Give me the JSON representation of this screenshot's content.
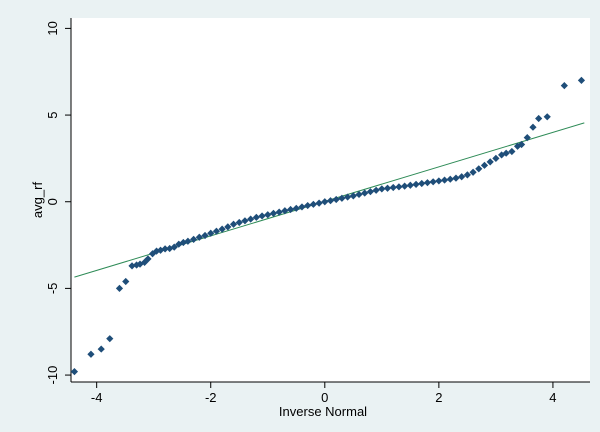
{
  "chart_data": {
    "type": "scatter",
    "title": "",
    "xlabel": "Inverse Normal",
    "ylabel": "avg_rf",
    "xlim": [
      -4.45,
      4.65
    ],
    "ylim": [
      -10.4,
      10.6
    ],
    "xticks": [
      -4,
      -2,
      0,
      2,
      4
    ],
    "xtick_labels": [
      "-4",
      "-2",
      "0",
      "2",
      "4"
    ],
    "yticks": [
      -10,
      -5,
      0,
      5,
      10
    ],
    "ytick_labels": [
      "-10",
      "-5",
      "0",
      "5",
      "10"
    ],
    "grid": false,
    "legend": "none",
    "colors": {
      "background": "#eaf2f3",
      "plot_area": "#ffffff",
      "markers": "#1f4e79",
      "reference_line": "#2e8b57",
      "axis": "#000000"
    },
    "series": [
      {
        "kind": "points",
        "x": [
          -4.39,
          -4.1,
          -3.92,
          -3.77,
          -3.6,
          -3.49,
          -3.38,
          -3.3,
          -3.24,
          -3.16,
          -3.1,
          -3.02,
          -2.95,
          -2.88,
          -2.8,
          -2.72,
          -2.64,
          -2.56,
          -2.48,
          -2.4,
          -2.3,
          -2.2,
          -2.1,
          -2.0,
          -1.9,
          -1.8,
          -1.7,
          -1.6,
          -1.5,
          -1.4,
          -1.3,
          -1.2,
          -1.1,
          -1.0,
          -0.9,
          -0.8,
          -0.7,
          -0.6,
          -0.5,
          -0.4,
          -0.3,
          -0.2,
          -0.1,
          0.0,
          0.1,
          0.2,
          0.3,
          0.4,
          0.5,
          0.6,
          0.7,
          0.8,
          0.9,
          1.0,
          1.1,
          1.2,
          1.3,
          1.4,
          1.5,
          1.6,
          1.7,
          1.8,
          1.9,
          2.0,
          2.1,
          2.2,
          2.3,
          2.4,
          2.5,
          2.6,
          2.7,
          2.8,
          2.9,
          3.0,
          3.1,
          3.18,
          3.28,
          3.38,
          3.45,
          3.55,
          3.65,
          3.75,
          3.9,
          4.2,
          4.5
        ],
        "y": [
          -9.8,
          -8.8,
          -8.5,
          -7.9,
          -5.0,
          -4.6,
          -3.7,
          -3.65,
          -3.6,
          -3.5,
          -3.3,
          -3.0,
          -2.85,
          -2.8,
          -2.72,
          -2.7,
          -2.62,
          -2.45,
          -2.35,
          -2.28,
          -2.17,
          -2.05,
          -1.95,
          -1.82,
          -1.7,
          -1.58,
          -1.45,
          -1.3,
          -1.2,
          -1.1,
          -1.0,
          -0.9,
          -0.82,
          -0.75,
          -0.67,
          -0.6,
          -0.52,
          -0.45,
          -0.38,
          -0.3,
          -0.22,
          -0.15,
          -0.08,
          0.0,
          0.06,
          0.13,
          0.2,
          0.27,
          0.34,
          0.42,
          0.5,
          0.58,
          0.66,
          0.74,
          0.78,
          0.82,
          0.86,
          0.9,
          0.95,
          1.0,
          1.05,
          1.1,
          1.15,
          1.2,
          1.25,
          1.3,
          1.36,
          1.44,
          1.55,
          1.7,
          1.9,
          2.1,
          2.3,
          2.5,
          2.7,
          2.8,
          2.9,
          3.2,
          3.3,
          3.7,
          4.3,
          4.8,
          4.9,
          6.7,
          7.0
        ]
      },
      {
        "kind": "reference_line",
        "x": [
          -4.39,
          4.55
        ],
        "y": [
          -4.35,
          4.55
        ]
      }
    ]
  }
}
